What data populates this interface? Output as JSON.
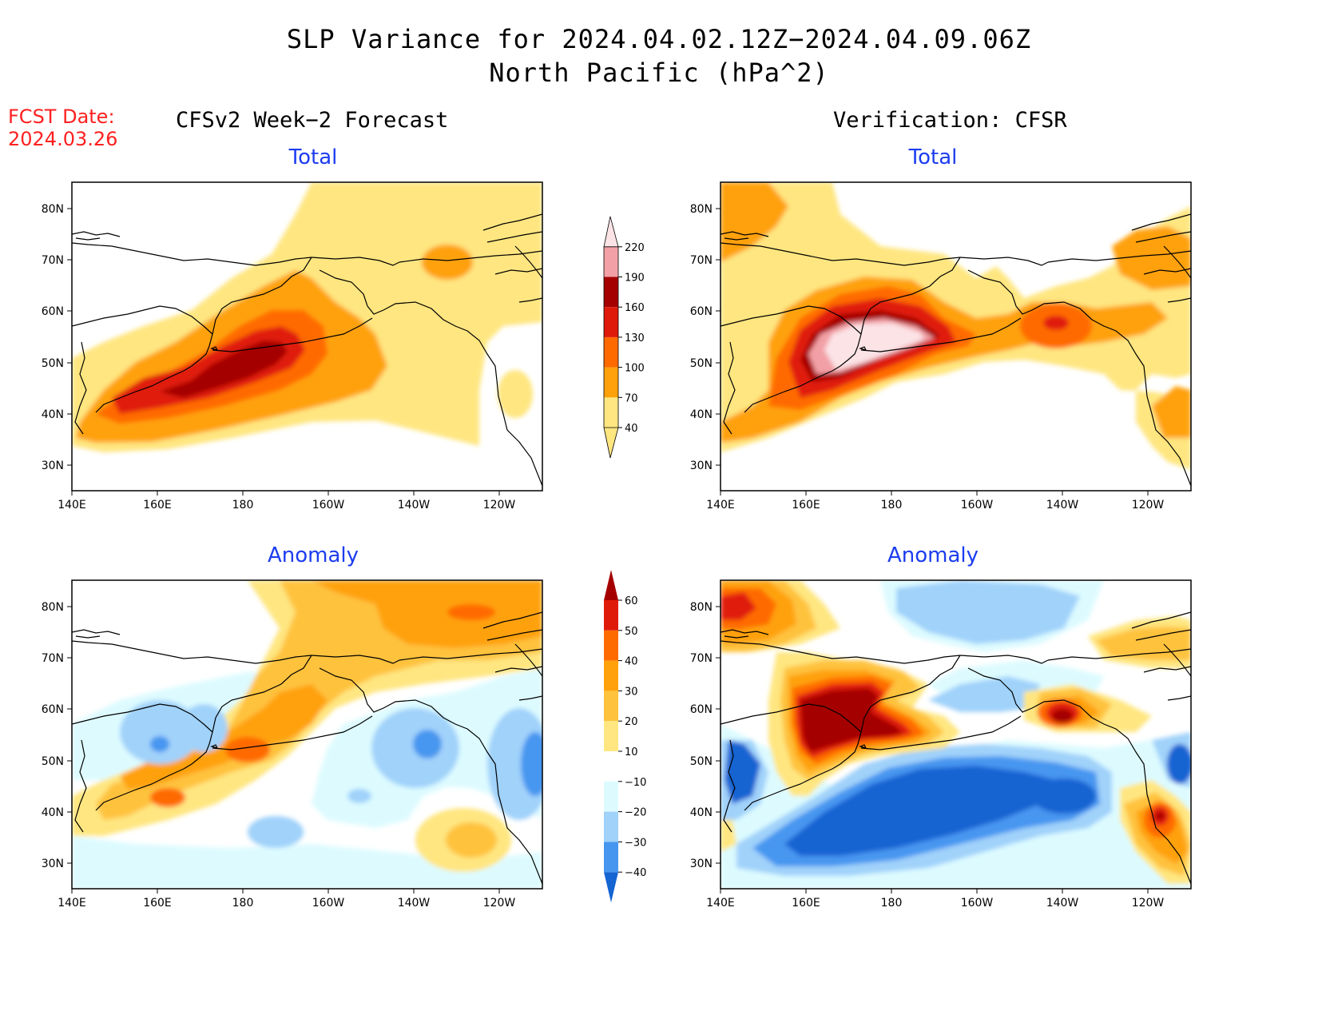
{
  "title": {
    "line1": "SLP Variance for 2024.04.02.12Z−2024.04.09.06Z",
    "line2": "North Pacific (hPa^2)"
  },
  "fcst": {
    "label": "FCST Date:",
    "date": "2024.03.26"
  },
  "columns": {
    "left": "CFSv2 Week−2 Forecast",
    "right": "Verification: CFSR"
  },
  "panels": [
    {
      "title": "Total"
    },
    {
      "title": "Total"
    },
    {
      "title": "Anomaly"
    },
    {
      "title": "Anomaly"
    }
  ],
  "axes": {
    "lon_ticks": [
      "140E",
      "160E",
      "180",
      "160W",
      "140W",
      "120W"
    ],
    "lat_ticks": [
      "80N",
      "70N",
      "60N",
      "50N",
      "40N",
      "30N"
    ]
  },
  "colorbar_total": {
    "levels": [
      "40",
      "70",
      "100",
      "130",
      "160",
      "190",
      "220"
    ],
    "colors": [
      "#ffe680",
      "#ffa10a",
      "#ff6a00",
      "#e01a0a",
      "#a50000",
      "#f2a0a6",
      "#fbe3e6"
    ]
  },
  "colorbar_anomaly": {
    "levels": [
      "60",
      "50",
      "40",
      "30",
      "20",
      "10",
      "−10",
      "−20",
      "−30",
      "−40"
    ],
    "colors": [
      "#a50000",
      "#e01a0a",
      "#ff6a00",
      "#ffa10a",
      "#ffc23c",
      "#ffe680",
      "#ffffff",
      "#ddfbff",
      "#a0d2fa",
      "#4696f0",
      "#1464d2"
    ]
  },
  "colors": {
    "title_blue": "#1c3cf0",
    "fcst_red": "#ff2020"
  }
}
